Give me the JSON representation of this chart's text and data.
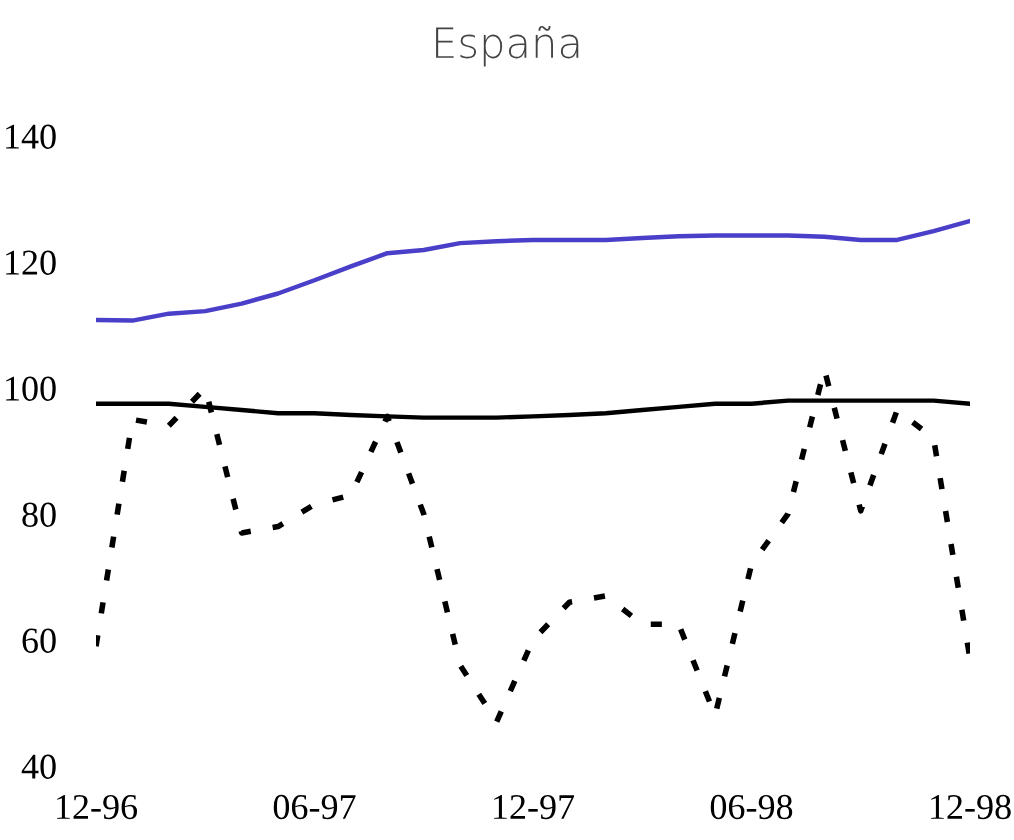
{
  "chart_data": {
    "type": "line",
    "title": "España",
    "categories": [
      "12-96",
      null,
      null,
      null,
      null,
      null,
      "06-97",
      null,
      null,
      null,
      null,
      null,
      "12-97",
      null,
      null,
      null,
      null,
      null,
      "06-98",
      null,
      null,
      null,
      null,
      null,
      "12-98"
    ],
    "ylim": [
      40,
      140
    ],
    "yticks": [
      40,
      60,
      80,
      100,
      120,
      140
    ],
    "series": [
      {
        "color": "#4a3fc8",
        "line_style": "solid",
        "values": [
          110.8,
          110.7,
          111.8,
          112.2,
          113.4,
          115,
          117.1,
          119.3,
          121.4,
          121.9,
          123,
          123.3,
          123.5,
          123.5,
          123.5,
          123.8,
          124.1,
          124.2,
          124.2,
          124.2,
          124,
          123.5,
          123.5,
          124.9,
          126.5
        ]
      },
      {
        "color": "#000000",
        "line_style": "solid",
        "values": [
          97.5,
          97.5,
          97.5,
          97,
          96.5,
          96,
          96,
          95.7,
          95.5,
          95.3,
          95.3,
          95.3,
          95.5,
          95.7,
          96,
          96.5,
          97,
          97.5,
          97.5,
          98,
          98,
          98,
          98,
          98,
          97.5
        ]
      },
      {
        "color": "#000000",
        "line_style": "dashed",
        "values": [
          59,
          95,
          94,
          100,
          77,
          78,
          81.5,
          83,
          95.5,
          80,
          56,
          47,
          60,
          66,
          67,
          62.5,
          62.5,
          48,
          72,
          80,
          103,
          80.5,
          96.5,
          92,
          57
        ]
      }
    ]
  }
}
